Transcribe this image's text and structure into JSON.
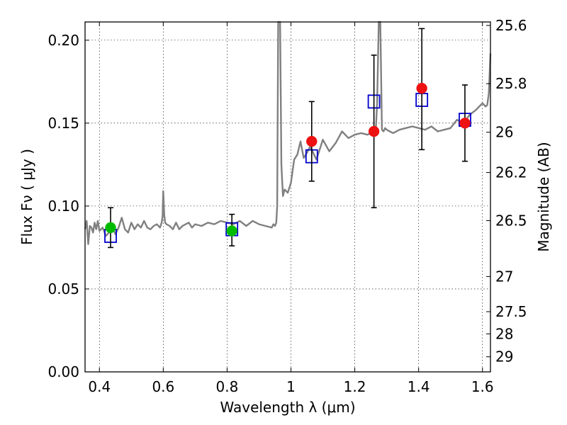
{
  "chart_data": {
    "type": "scatter",
    "xlabel": "Wavelength  λ (μm)",
    "ylabel": "Flux  Fν  ( μJy )",
    "y2label": "Magnitude (AB)",
    "xlim": [
      0.355,
      1.625
    ],
    "ylim": [
      0.0,
      0.211
    ],
    "grid": true,
    "x_ticks": [
      0.4,
      0.6,
      0.8,
      1.0,
      1.2,
      1.4,
      1.6
    ],
    "x_tick_labels": [
      "0.4",
      "0.6",
      "0.8",
      "1",
      "1.2",
      "1.4",
      "1.6"
    ],
    "y_ticks": [
      0.0,
      0.05,
      0.1,
      0.15,
      0.2
    ],
    "y_tick_labels": [
      "0.00",
      "0.05",
      "0.10",
      "0.15",
      "0.20"
    ],
    "mag_ticks": [
      {
        "label": "25.6",
        "flux": 0.2089
      },
      {
        "label": "25.8",
        "flux": 0.1738
      },
      {
        "label": "26",
        "flux": 0.1445
      },
      {
        "label": "26.2",
        "flux": 0.1202
      },
      {
        "label": "26.5",
        "flux": 0.0912
      },
      {
        "label": "27",
        "flux": 0.0575
      },
      {
        "label": "27.5",
        "flux": 0.0363
      },
      {
        "label": "28",
        "flux": 0.0229
      },
      {
        "label": "29",
        "flux": 0.0091
      }
    ],
    "colors": {
      "model": "#808080",
      "model_points": "#0000cc",
      "green_points": "#00bb00",
      "red_points": "#ee1111",
      "errorbar": "#000000"
    },
    "model_spectrum": {
      "x": [
        0.355,
        0.36,
        0.365,
        0.37,
        0.375,
        0.38,
        0.385,
        0.39,
        0.395,
        0.4,
        0.41,
        0.42,
        0.43,
        0.44,
        0.45,
        0.46,
        0.47,
        0.48,
        0.49,
        0.5,
        0.51,
        0.52,
        0.53,
        0.54,
        0.55,
        0.56,
        0.57,
        0.58,
        0.59,
        0.595,
        0.598,
        0.6,
        0.603,
        0.606,
        0.61,
        0.62,
        0.63,
        0.64,
        0.65,
        0.66,
        0.67,
        0.68,
        0.69,
        0.7,
        0.72,
        0.74,
        0.76,
        0.78,
        0.8,
        0.82,
        0.84,
        0.86,
        0.88,
        0.9,
        0.92,
        0.94,
        0.945,
        0.95,
        0.954,
        0.957,
        0.96,
        0.963,
        0.966,
        0.97,
        0.975,
        0.98,
        0.99,
        1.0,
        1.01,
        1.02,
        1.03,
        1.04,
        1.05,
        1.06,
        1.08,
        1.1,
        1.12,
        1.14,
        1.16,
        1.18,
        1.2,
        1.22,
        1.24,
        1.26,
        1.265,
        1.27,
        1.275,
        1.28,
        1.285,
        1.29,
        1.295,
        1.3,
        1.32,
        1.34,
        1.36,
        1.38,
        1.4,
        1.42,
        1.44,
        1.46,
        1.48,
        1.5,
        1.52,
        1.54,
        1.56,
        1.58,
        1.6,
        1.61,
        1.615,
        1.62,
        1.625
      ],
      "y": [
        0.086,
        0.091,
        0.077,
        0.088,
        0.087,
        0.084,
        0.09,
        0.086,
        0.091,
        0.085,
        0.087,
        0.082,
        0.084,
        0.088,
        0.083,
        0.087,
        0.093,
        0.086,
        0.084,
        0.09,
        0.086,
        0.089,
        0.087,
        0.091,
        0.087,
        0.086,
        0.088,
        0.089,
        0.087,
        0.09,
        0.094,
        0.109,
        0.095,
        0.09,
        0.089,
        0.088,
        0.086,
        0.09,
        0.086,
        0.088,
        0.089,
        0.09,
        0.087,
        0.089,
        0.088,
        0.09,
        0.089,
        0.091,
        0.09,
        0.089,
        0.091,
        0.088,
        0.091,
        0.089,
        0.088,
        0.087,
        0.089,
        0.088,
        0.09,
        0.1,
        0.211,
        0.211,
        0.211,
        0.125,
        0.106,
        0.11,
        0.108,
        0.114,
        0.128,
        0.131,
        0.139,
        0.129,
        0.132,
        0.136,
        0.128,
        0.14,
        0.133,
        0.138,
        0.145,
        0.141,
        0.143,
        0.144,
        0.143,
        0.145,
        0.143,
        0.162,
        0.211,
        0.211,
        0.146,
        0.145,
        0.147,
        0.146,
        0.144,
        0.146,
        0.147,
        0.148,
        0.147,
        0.146,
        0.148,
        0.145,
        0.146,
        0.147,
        0.152,
        0.15,
        0.155,
        0.158,
        0.162,
        0.16,
        0.161,
        0.168,
        0.192
      ]
    },
    "model_points": {
      "x": [
        0.435,
        0.815,
        1.065,
        1.26,
        1.41,
        1.545
      ],
      "y": [
        0.082,
        0.086,
        0.13,
        0.163,
        0.164,
        0.152
      ]
    },
    "observed_green": {
      "x": [
        0.435,
        0.815
      ],
      "y": [
        0.087,
        0.085
      ],
      "yerr_low": [
        0.075,
        0.076
      ],
      "yerr_high": [
        0.099,
        0.095
      ]
    },
    "observed_red": {
      "x": [
        1.065,
        1.26,
        1.41,
        1.545
      ],
      "y": [
        0.139,
        0.145,
        0.171,
        0.15
      ],
      "yerr_low": [
        0.115,
        0.099,
        0.134,
        0.127
      ],
      "yerr_high": [
        0.163,
        0.191,
        0.207,
        0.173
      ]
    }
  }
}
